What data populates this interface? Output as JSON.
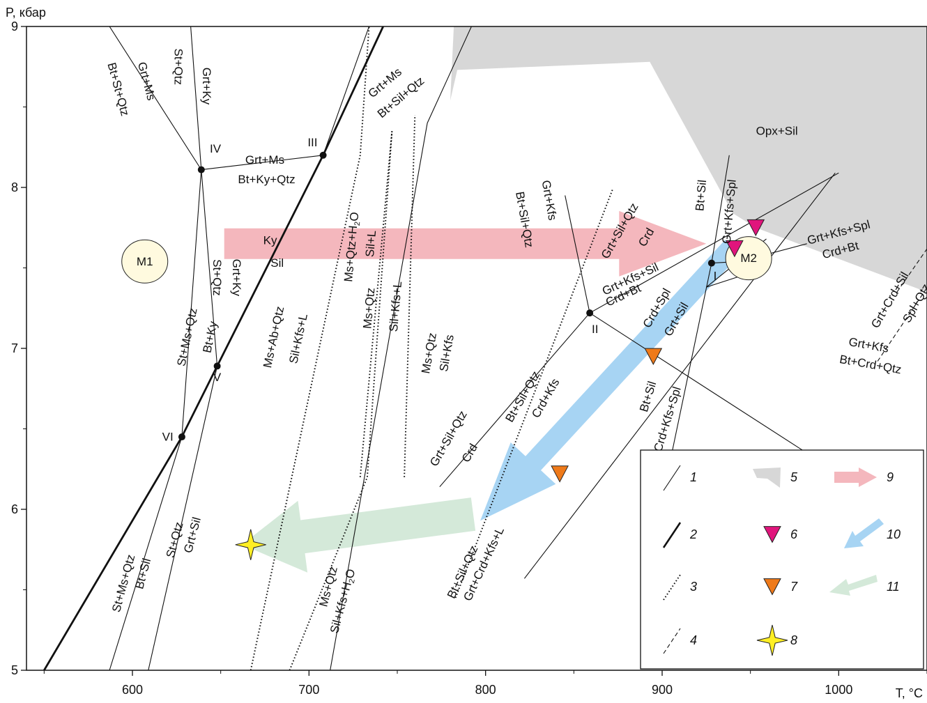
{
  "chart_data": {
    "type": "phase-diagram",
    "xlabel": "T, °C",
    "ylabel": "P, кбар",
    "xlim": [
      540,
      1050
    ],
    "ylim": [
      5,
      9
    ],
    "x_ticks": [
      600,
      700,
      800,
      900,
      1000
    ],
    "x_minor_ticks": [
      550,
      650,
      750,
      850,
      950,
      1050
    ],
    "y_ticks": [
      5,
      6,
      7,
      8,
      9
    ],
    "y_minor_ticks": [
      5.5,
      6.5,
      7.5,
      8.5
    ],
    "invariant_points": [
      {
        "label": "I",
        "T": 928,
        "P": 7.53
      },
      {
        "label": "II",
        "T": 859,
        "P": 7.22
      },
      {
        "label": "III",
        "T": 708,
        "P": 8.2
      },
      {
        "label": "IV",
        "T": 639,
        "P": 8.11
      },
      {
        "label": "V",
        "T": 648,
        "P": 6.89
      },
      {
        "label": "VI",
        "T": 628,
        "P": 6.45
      }
    ],
    "thin_lines": [
      [
        [
          587,
          5.0
        ],
        [
          628,
          6.45
        ],
        [
          648,
          6.89
        ],
        [
          708,
          8.2
        ],
        [
          734,
          9.0
        ]
      ],
      [
        [
          609,
          5.0
        ],
        [
          648,
          6.89
        ],
        [
          639,
          8.11
        ],
        [
          633,
          9.0
        ]
      ],
      [
        [
          628,
          6.45
        ],
        [
          639,
          8.11
        ],
        [
          587,
          9.0
        ]
      ],
      [
        [
          639,
          8.11
        ],
        [
          708,
          8.2
        ]
      ],
      [
        [
          712,
          5.0
        ],
        [
          767,
          8.4
        ],
        [
          792,
          9.0
        ]
      ],
      [
        [
          845,
          7.95
        ],
        [
          859,
          7.22
        ],
        [
          1000,
          8.09
        ]
      ],
      [
        [
          822,
          5.57
        ],
        [
          998,
          8.09
        ]
      ],
      [
        [
          859,
          7.22
        ],
        [
          989,
          6.3
        ]
      ],
      [
        [
          859,
          7.22
        ],
        [
          774,
          6.14
        ]
      ],
      [
        [
          928,
          7.53
        ],
        [
          938,
          8.2
        ]
      ],
      [
        [
          928,
          7.53
        ],
        [
          904,
          6.27
        ]
      ],
      [
        [
          928,
          7.53
        ],
        [
          944,
          7.54
        ],
        [
          982,
          7.65
        ]
      ],
      [
        [
          925,
          7.38
        ],
        [
          959,
          7.68
        ]
      ],
      [
        [
          925,
          7.38
        ],
        [
          953,
          7.48
        ]
      ]
    ],
    "thick_line": [
      [
        550,
        5.0
      ],
      [
        628,
        6.45
      ],
      [
        648,
        6.89
      ],
      [
        708,
        8.2
      ],
      [
        742,
        9.0
      ]
    ],
    "dotted_lines": [
      [
        [
          667,
          5.0
        ],
        [
          729,
          8.2
        ],
        [
          734,
          9.0
        ]
      ],
      [
        [
          689,
          5.0
        ],
        [
          733,
          6.2
        ],
        [
          747,
          8.35
        ]
      ],
      [
        [
          729,
          6.2
        ],
        [
          747,
          8.35
        ]
      ],
      [
        [
          754,
          6.2
        ],
        [
          760,
          8.45
        ]
      ],
      [
        [
          783,
          5.45
        ],
        [
          872,
          7.99
        ]
      ]
    ],
    "dashed_lines": [
      [
        [
          1033,
          7.35
        ],
        [
          1078,
          8.06
        ]
      ],
      [
        [
          1022,
          6.92
        ],
        [
          1052,
          7.41
        ]
      ]
    ],
    "shaded_region": [
      [
        783,
        9.0
      ],
      [
        1050,
        9.0
      ],
      [
        1050,
        7.35
      ],
      [
        953,
        7.75
      ],
      [
        940,
        7.84
      ],
      [
        893,
        8.78
      ],
      [
        784,
        8.73
      ],
      [
        780,
        8.54
      ],
      [
        782,
        9.0
      ]
    ],
    "annotations": [
      {
        "text": "Bt+St+Qtz",
        "T": 592,
        "P": 8.61,
        "rotate": 75
      },
      {
        "text": "Grt+Ms",
        "T": 608,
        "P": 8.66,
        "rotate": 75
      },
      {
        "text": "St+Qtz",
        "T": 626,
        "P": 8.75,
        "rotate": 90
      },
      {
        "text": "Grt+Ky",
        "T": 642,
        "P": 8.63,
        "rotate": 90
      },
      {
        "text": "IV",
        "T": 647,
        "P": 8.24,
        "rotate": 0
      },
      {
        "text": "Grt+Ms",
        "T": 675,
        "P": 8.17,
        "rotate": 0
      },
      {
        "text": "Bt+Ky+Qtz",
        "T": 676,
        "P": 8.05,
        "rotate": 0
      },
      {
        "text": "III",
        "T": 702,
        "P": 8.28,
        "rotate": 0
      },
      {
        "text": "Grt+Ms",
        "T": 743,
        "P": 8.65,
        "rotate": -40
      },
      {
        "text": "Bt+Sil+Qtz",
        "T": 752,
        "P": 8.56,
        "rotate": -40
      },
      {
        "text": "M1",
        "T": 607,
        "P": 7.54,
        "rotate": 0
      },
      {
        "text": "St+Qtz",
        "T": 648,
        "P": 7.44,
        "rotate": 90
      },
      {
        "text": "Grt+Ky",
        "T": 659,
        "P": 7.44,
        "rotate": 90
      },
      {
        "text": "Ky",
        "T": 678,
        "P": 7.67,
        "rotate": 0
      },
      {
        "text": "Sil",
        "T": 682,
        "P": 7.53,
        "rotate": 0
      },
      {
        "text": "St+Ms+Qtz",
        "T": 631,
        "P": 7.07,
        "rotate": -78
      },
      {
        "text": "Bt+Ky",
        "T": 644,
        "P": 7.07,
        "rotate": -78
      },
      {
        "text": "V",
        "T": 648,
        "P": 6.82,
        "rotate": 0
      },
      {
        "text": "VI",
        "T": 620,
        "P": 6.45,
        "rotate": 0
      },
      {
        "text": "Ms+Ab+Qtz",
        "T": 680,
        "P": 7.07,
        "rotate": -78
      },
      {
        "text": "Sil+Kfs+L",
        "T": 694,
        "P": 7.06,
        "rotate": -78
      },
      {
        "text": "Ms+Qtz+H2O",
        "T": 724,
        "P": 7.63,
        "rotate": -85
      },
      {
        "text": "Sil+L",
        "T": 735,
        "P": 7.65,
        "rotate": -85
      },
      {
        "text": "Ms+Qtz",
        "T": 734,
        "P": 7.25,
        "rotate": -85
      },
      {
        "text": "Sil+Kfs+L",
        "T": 749,
        "P": 7.26,
        "rotate": -85
      },
      {
        "text": "Ms+Qtz",
        "T": 768,
        "P": 6.97,
        "rotate": -80
      },
      {
        "text": "Sil+Kfs",
        "T": 778,
        "P": 6.97,
        "rotate": -80
      },
      {
        "text": "Grt+Kfs",
        "T": 836,
        "P": 7.92,
        "rotate": 80
      },
      {
        "text": "Bt+Sil+Qtz",
        "T": 822,
        "P": 7.8,
        "rotate": 80
      },
      {
        "text": "Grt+Sil+Qtz",
        "T": 876,
        "P": 7.73,
        "rotate": -60
      },
      {
        "text": "Crd",
        "T": 891,
        "P": 7.69,
        "rotate": -60
      },
      {
        "text": "Bt+Sil",
        "T": 922,
        "P": 7.95,
        "rotate": -85
      },
      {
        "text": "Grt+Kfs+Spl",
        "T": 938,
        "P": 7.85,
        "rotate": -85
      },
      {
        "text": "Opx+Sil",
        "T": 965,
        "P": 8.35,
        "rotate": 0
      },
      {
        "text": "M2",
        "T": 949,
        "P": 7.56,
        "rotate": 0
      },
      {
        "text": "Grt+Kfs+Spl",
        "T": 1000,
        "P": 7.72,
        "rotate": -15
      },
      {
        "text": "Crd+Bt",
        "T": 1001,
        "P": 7.61,
        "rotate": -15
      },
      {
        "text": "I",
        "T": 930,
        "P": 7.45,
        "rotate": 0
      },
      {
        "text": "Grt+Kfs+Sil",
        "T": 882,
        "P": 7.43,
        "rotate": -25
      },
      {
        "text": "Crd+Bt",
        "T": 878,
        "P": 7.33,
        "rotate": -25
      },
      {
        "text": "II",
        "T": 862,
        "P": 7.12,
        "rotate": 0
      },
      {
        "text": "Crd+Spl",
        "T": 897,
        "P": 7.25,
        "rotate": -60
      },
      {
        "text": "Grt+Sil",
        "T": 908,
        "P": 7.18,
        "rotate": -60
      },
      {
        "text": "Grt+Kfs",
        "T": 1017,
        "P": 7.02,
        "rotate": 10
      },
      {
        "text": "Bt+Crd+Qtz",
        "T": 1018,
        "P": 6.9,
        "rotate": 10
      },
      {
        "text": "Grt+Crd+Sil",
        "T": 1029,
        "P": 7.3,
        "rotate": -60
      },
      {
        "text": "Spl+Qtz",
        "T": 1044,
        "P": 7.28,
        "rotate": -60
      },
      {
        "text": "Bt+Sil",
        "T": 892,
        "P": 6.7,
        "rotate": -73
      },
      {
        "text": "Crd+Kfs+Spl",
        "T": 903,
        "P": 6.56,
        "rotate": -73
      },
      {
        "text": "Bt+Sil+Qtz",
        "T": 821,
        "P": 6.7,
        "rotate": -60
      },
      {
        "text": "Crd+Kfs",
        "T": 834,
        "P": 6.69,
        "rotate": -60
      },
      {
        "text": "Grt+Sil+Qtz",
        "T": 779,
        "P": 6.44,
        "rotate": -60
      },
      {
        "text": "Crd",
        "T": 791,
        "P": 6.35,
        "rotate": -60
      },
      {
        "text": "St+Ms+Qtz",
        "T": 595,
        "P": 5.54,
        "rotate": -75
      },
      {
        "text": "Bt+Sil",
        "T": 606,
        "P": 5.6,
        "rotate": -75
      },
      {
        "text": "St+Qtz",
        "T": 624,
        "P": 5.81,
        "rotate": -75
      },
      {
        "text": "Grt+Sil",
        "T": 634,
        "P": 5.84,
        "rotate": -75
      },
      {
        "text": "Ms+Qtz",
        "T": 711,
        "P": 5.52,
        "rotate": -75
      },
      {
        "text": "Sil+Kfs+H2O",
        "T": 719,
        "P": 5.43,
        "rotate": -75
      },
      {
        "text": "Bt+Sil+Qtz",
        "T": 787,
        "P": 5.61,
        "rotate": -65
      },
      {
        "text": "Grt+Crd+Kfs+L",
        "T": 799,
        "P": 5.66,
        "rotate": -65
      }
    ],
    "ellipses": [
      {
        "label": "M1",
        "T": 607,
        "P": 7.54
      },
      {
        "label": "M2",
        "T": 949,
        "P": 7.56
      }
    ],
    "markers": [
      {
        "type": "magenta-triangle",
        "T": 953,
        "P": 7.75
      },
      {
        "type": "magenta-triangle",
        "T": 941,
        "P": 7.62
      },
      {
        "type": "orange-triangle",
        "T": 895,
        "P": 6.95
      },
      {
        "type": "orange-triangle",
        "T": 842,
        "P": 6.22
      },
      {
        "type": "yellow-star",
        "T": 667,
        "P": 5.78
      }
    ],
    "arrows": [
      {
        "kind": "prograde",
        "from": [
          652,
          7.65
        ],
        "to": [
          925,
          7.65
        ],
        "color": "#f4b7bd"
      },
      {
        "kind": "retrograde-1",
        "from": [
          940,
          7.63
        ],
        "to": [
          797,
          5.93
        ],
        "color": "#a7d4f3"
      },
      {
        "kind": "retrograde-2",
        "from": [
          793,
          5.97
        ],
        "to": [
          662,
          5.78
        ],
        "color": "#d4e9d9"
      }
    ],
    "legend": {
      "items": [
        {
          "num": "1",
          "kind": "thin-line"
        },
        {
          "num": "2",
          "kind": "thick-line"
        },
        {
          "num": "3",
          "kind": "dotted-line"
        },
        {
          "num": "4",
          "kind": "dashed-line"
        },
        {
          "num": "5",
          "kind": "gray-region"
        },
        {
          "num": "6",
          "kind": "magenta-triangle"
        },
        {
          "num": "7",
          "kind": "orange-triangle"
        },
        {
          "num": "8",
          "kind": "yellow-star"
        },
        {
          "num": "9",
          "kind": "pink-arrow"
        },
        {
          "num": "10",
          "kind": "blue-arrow"
        },
        {
          "num": "11",
          "kind": "green-arrow"
        }
      ]
    },
    "colors": {
      "shade": "#d7d7d7",
      "ellipse": "#fffadf",
      "magenta": "#e0157c",
      "orange": "#ef7a1a",
      "star": "#ffef24",
      "pink": "#f4b7bd",
      "blue": "#a7d4f3",
      "green": "#d4e9d9"
    }
  }
}
